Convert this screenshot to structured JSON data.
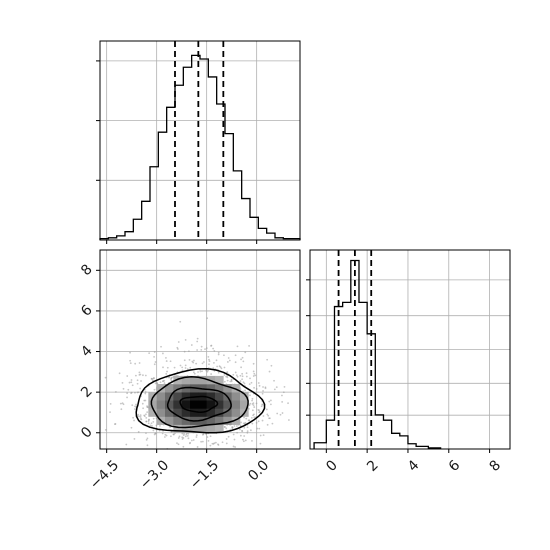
{
  "chart_data": [
    {
      "type": "histogram",
      "panel": "marginal-x",
      "xlim": [
        -4.7,
        1.3
      ],
      "bins": [
        {
          "x0": -4.7,
          "x1": -4.45,
          "count": 5
        },
        {
          "x0": -4.45,
          "x1": -4.2,
          "count": 8
        },
        {
          "x0": -4.2,
          "x1": -3.95,
          "count": 15
        },
        {
          "x0": -3.95,
          "x1": -3.7,
          "count": 30
        },
        {
          "x0": -3.7,
          "x1": -3.45,
          "count": 75
        },
        {
          "x0": -3.45,
          "x1": -3.2,
          "count": 140
        },
        {
          "x0": -3.2,
          "x1": -2.95,
          "count": 265
        },
        {
          "x0": -2.95,
          "x1": -2.7,
          "count": 390
        },
        {
          "x0": -2.7,
          "x1": -2.45,
          "count": 480
        },
        {
          "x0": -2.45,
          "x1": -2.2,
          "count": 560
        },
        {
          "x0": -2.2,
          "x1": -1.95,
          "count": 625
        },
        {
          "x0": -1.95,
          "x1": -1.7,
          "count": 668
        },
        {
          "x0": -1.7,
          "x1": -1.45,
          "count": 655
        },
        {
          "x0": -1.45,
          "x1": -1.2,
          "count": 590
        },
        {
          "x0": -1.2,
          "x1": -0.95,
          "count": 492
        },
        {
          "x0": -0.95,
          "x1": -0.7,
          "count": 385
        },
        {
          "x0": -0.7,
          "x1": -0.45,
          "count": 250
        },
        {
          "x0": -0.45,
          "x1": -0.2,
          "count": 150
        },
        {
          "x0": -0.2,
          "x1": 0.05,
          "count": 82
        },
        {
          "x0": 0.05,
          "x1": 0.3,
          "count": 42
        },
        {
          "x0": 0.3,
          "x1": 0.55,
          "count": 25
        },
        {
          "x0": 0.55,
          "x1": 0.8,
          "count": 8
        },
        {
          "x0": 0.8,
          "x1": 1.05,
          "count": 5
        },
        {
          "x0": 1.05,
          "x1": 1.3,
          "count": 5
        }
      ],
      "ymax": 720,
      "quantiles": [
        -2.45,
        -1.75,
        -1.0
      ],
      "grid": true
    },
    {
      "type": "histogram",
      "panel": "marginal-y",
      "xlim": [
        -0.8,
        9.0
      ],
      "bins": [
        {
          "x0": -0.6,
          "x1": 0.0,
          "count": 12
        },
        {
          "x0": 0.0,
          "x1": 0.4,
          "count": 55
        },
        {
          "x0": 0.4,
          "x1": 0.8,
          "count": 272
        },
        {
          "x0": 0.8,
          "x1": 1.2,
          "count": 280
        },
        {
          "x0": 1.2,
          "x1": 1.6,
          "count": 360
        },
        {
          "x0": 1.6,
          "x1": 2.0,
          "count": 280
        },
        {
          "x0": 2.0,
          "x1": 2.4,
          "count": 220
        },
        {
          "x0": 2.4,
          "x1": 2.8,
          "count": 65
        },
        {
          "x0": 2.8,
          "x1": 3.2,
          "count": 55
        },
        {
          "x0": 3.2,
          "x1": 3.6,
          "count": 30
        },
        {
          "x0": 3.6,
          "x1": 4.0,
          "count": 25
        },
        {
          "x0": 4.0,
          "x1": 4.4,
          "count": 10
        },
        {
          "x0": 4.4,
          "x1": 5.0,
          "count": 5
        },
        {
          "x0": 5.0,
          "x1": 5.6,
          "count": 2
        }
      ],
      "ymax": 380,
      "quantiles": [
        0.6,
        1.4,
        2.2
      ],
      "grid": true
    },
    {
      "type": "scatter-density",
      "panel": "joint",
      "x_ticks": [
        "−4.5",
        "−3.0",
        "−1.5",
        "0.0"
      ],
      "x_tick_values": [
        -4.5,
        -3.0,
        -1.5,
        0.0
      ],
      "y_ticks": [
        "0",
        "2",
        "4",
        "6",
        "8"
      ],
      "y_tick_values": [
        0,
        2,
        4,
        6,
        8
      ],
      "xlim": [
        -4.7,
        1.3
      ],
      "ylim": [
        -0.8,
        9.0
      ],
      "center": [
        -1.75,
        1.4
      ],
      "contours": [
        {
          "level": 1,
          "rx": 0.55,
          "ry": 0.38
        },
        {
          "level": 2,
          "rx": 0.95,
          "ry": 0.8
        },
        {
          "level": 3,
          "rx": 1.45,
          "ry": 1.2
        },
        {
          "level": 4,
          "rx": 1.9,
          "ry": 1.55
        }
      ],
      "grid": true
    },
    {
      "type": "axis",
      "panel": "marginal-y",
      "x_ticks": [
        "0",
        "2",
        "4",
        "6",
        "8"
      ],
      "x_tick_values": [
        0,
        2,
        4,
        6,
        8
      ]
    }
  ]
}
